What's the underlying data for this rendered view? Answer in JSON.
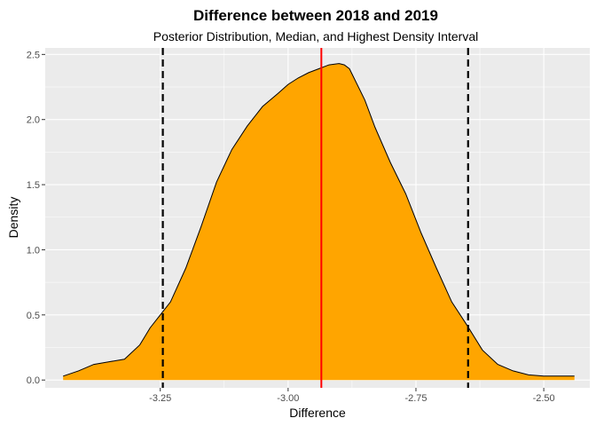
{
  "chart_data": {
    "type": "area",
    "title": "Difference between 2018 and 2019",
    "subtitle": "Posterior Distribution, Median, and Highest Density Interval",
    "xlabel": "Difference",
    "ylabel": "Density",
    "xlim": [
      -3.475,
      -2.41
    ],
    "ylim": [
      -0.06,
      2.55
    ],
    "x_ticks": [
      -3.25,
      -3.0,
      -2.75,
      -2.5
    ],
    "x_tick_labels": [
      "-3.25",
      "-3.00",
      "-2.75",
      "-2.50"
    ],
    "y_ticks": [
      0.0,
      0.5,
      1.0,
      1.5,
      2.0,
      2.5
    ],
    "y_tick_labels": [
      "0.0",
      "0.5",
      "1.0",
      "1.5",
      "2.0",
      "2.5"
    ],
    "grid": true,
    "density": {
      "x": [
        -3.44,
        -3.41,
        -3.38,
        -3.35,
        -3.32,
        -3.29,
        -3.27,
        -3.25,
        -3.23,
        -3.2,
        -3.17,
        -3.14,
        -3.11,
        -3.08,
        -3.05,
        -3.02,
        -3.0,
        -2.98,
        -2.96,
        -2.94,
        -2.92,
        -2.9,
        -2.89,
        -2.88,
        -2.87,
        -2.85,
        -2.83,
        -2.8,
        -2.77,
        -2.74,
        -2.71,
        -2.68,
        -2.65,
        -2.62,
        -2.59,
        -2.56,
        -2.53,
        -2.5,
        -2.47,
        -2.44
      ],
      "y": [
        0.03,
        0.07,
        0.12,
        0.14,
        0.16,
        0.27,
        0.4,
        0.5,
        0.6,
        0.86,
        1.18,
        1.52,
        1.77,
        1.95,
        2.1,
        2.2,
        2.27,
        2.32,
        2.36,
        2.39,
        2.42,
        2.43,
        2.42,
        2.39,
        2.31,
        2.15,
        1.94,
        1.67,
        1.43,
        1.13,
        0.86,
        0.6,
        0.42,
        0.23,
        0.12,
        0.07,
        0.04,
        0.03,
        0.03,
        0.03
      ],
      "fill": "#FFA500",
      "stroke": "#000000"
    },
    "median": {
      "x": -2.935,
      "color": "#FF0000"
    },
    "hdi": {
      "lower": -3.245,
      "upper": -2.648,
      "color": "#000000",
      "style": "dashed"
    },
    "panel_background": "#EBEBEB",
    "grid_color": "#FFFFFF"
  }
}
